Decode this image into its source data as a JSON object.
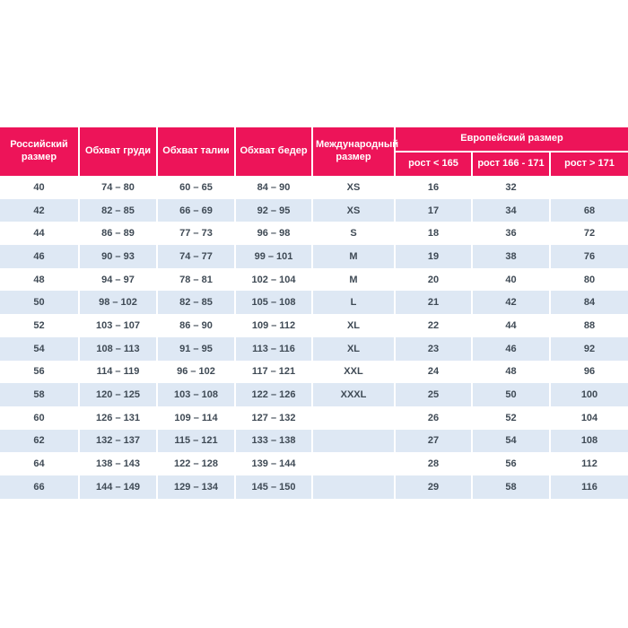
{
  "colors": {
    "header_bg": "#ED1459",
    "header_text": "#FFFFFF",
    "alt_row_bg": "#DEE8F4",
    "body_text": "#3F4A55"
  },
  "chart_data": {
    "type": "table",
    "title": "",
    "header": {
      "russian_size": "Российский размер",
      "chest": "Обхват груди",
      "waist": "Обхват талии",
      "hips": "Обхват бедер",
      "international": "Международный размер",
      "european_group": "Европейский размер",
      "european_sub": [
        "рост < 165",
        "рост 166 - 171",
        "рост > 171"
      ]
    },
    "rows": [
      [
        "40",
        "74 – 80",
        "60 – 65",
        "84 – 90",
        "XS",
        "16",
        "32",
        ""
      ],
      [
        "42",
        "82 – 85",
        "66 – 69",
        "92 – 95",
        "XS",
        "17",
        "34",
        "68"
      ],
      [
        "44",
        "86 – 89",
        "77 – 73",
        "96 – 98",
        "S",
        "18",
        "36",
        "72"
      ],
      [
        "46",
        "90 – 93",
        "74 – 77",
        "99 – 101",
        "M",
        "19",
        "38",
        "76"
      ],
      [
        "48",
        "94 – 97",
        "78 – 81",
        "102 – 104",
        "M",
        "20",
        "40",
        "80"
      ],
      [
        "50",
        "98 – 102",
        "82 – 85",
        "105 – 108",
        "L",
        "21",
        "42",
        "84"
      ],
      [
        "52",
        "103 – 107",
        "86 – 90",
        "109 – 112",
        "XL",
        "22",
        "44",
        "88"
      ],
      [
        "54",
        "108 – 113",
        "91 – 95",
        "113 – 116",
        "XL",
        "23",
        "46",
        "92"
      ],
      [
        "56",
        "114 – 119",
        "96 – 102",
        "117 – 121",
        "XXL",
        "24",
        "48",
        "96"
      ],
      [
        "58",
        "120 – 125",
        "103 – 108",
        "122 – 126",
        "XXXL",
        "25",
        "50",
        "100"
      ],
      [
        "60",
        "126 – 131",
        "109 – 114",
        "127 – 132",
        "",
        "26",
        "52",
        "104"
      ],
      [
        "62",
        "132 – 137",
        "115 – 121",
        "133 – 138",
        "",
        "27",
        "54",
        "108"
      ],
      [
        "64",
        "138 – 143",
        "122 – 128",
        "139 – 144",
        "",
        "28",
        "56",
        "112"
      ],
      [
        "66",
        "144 – 149",
        "129 – 134",
        "145 – 150",
        "",
        "29",
        "58",
        "116"
      ]
    ]
  }
}
